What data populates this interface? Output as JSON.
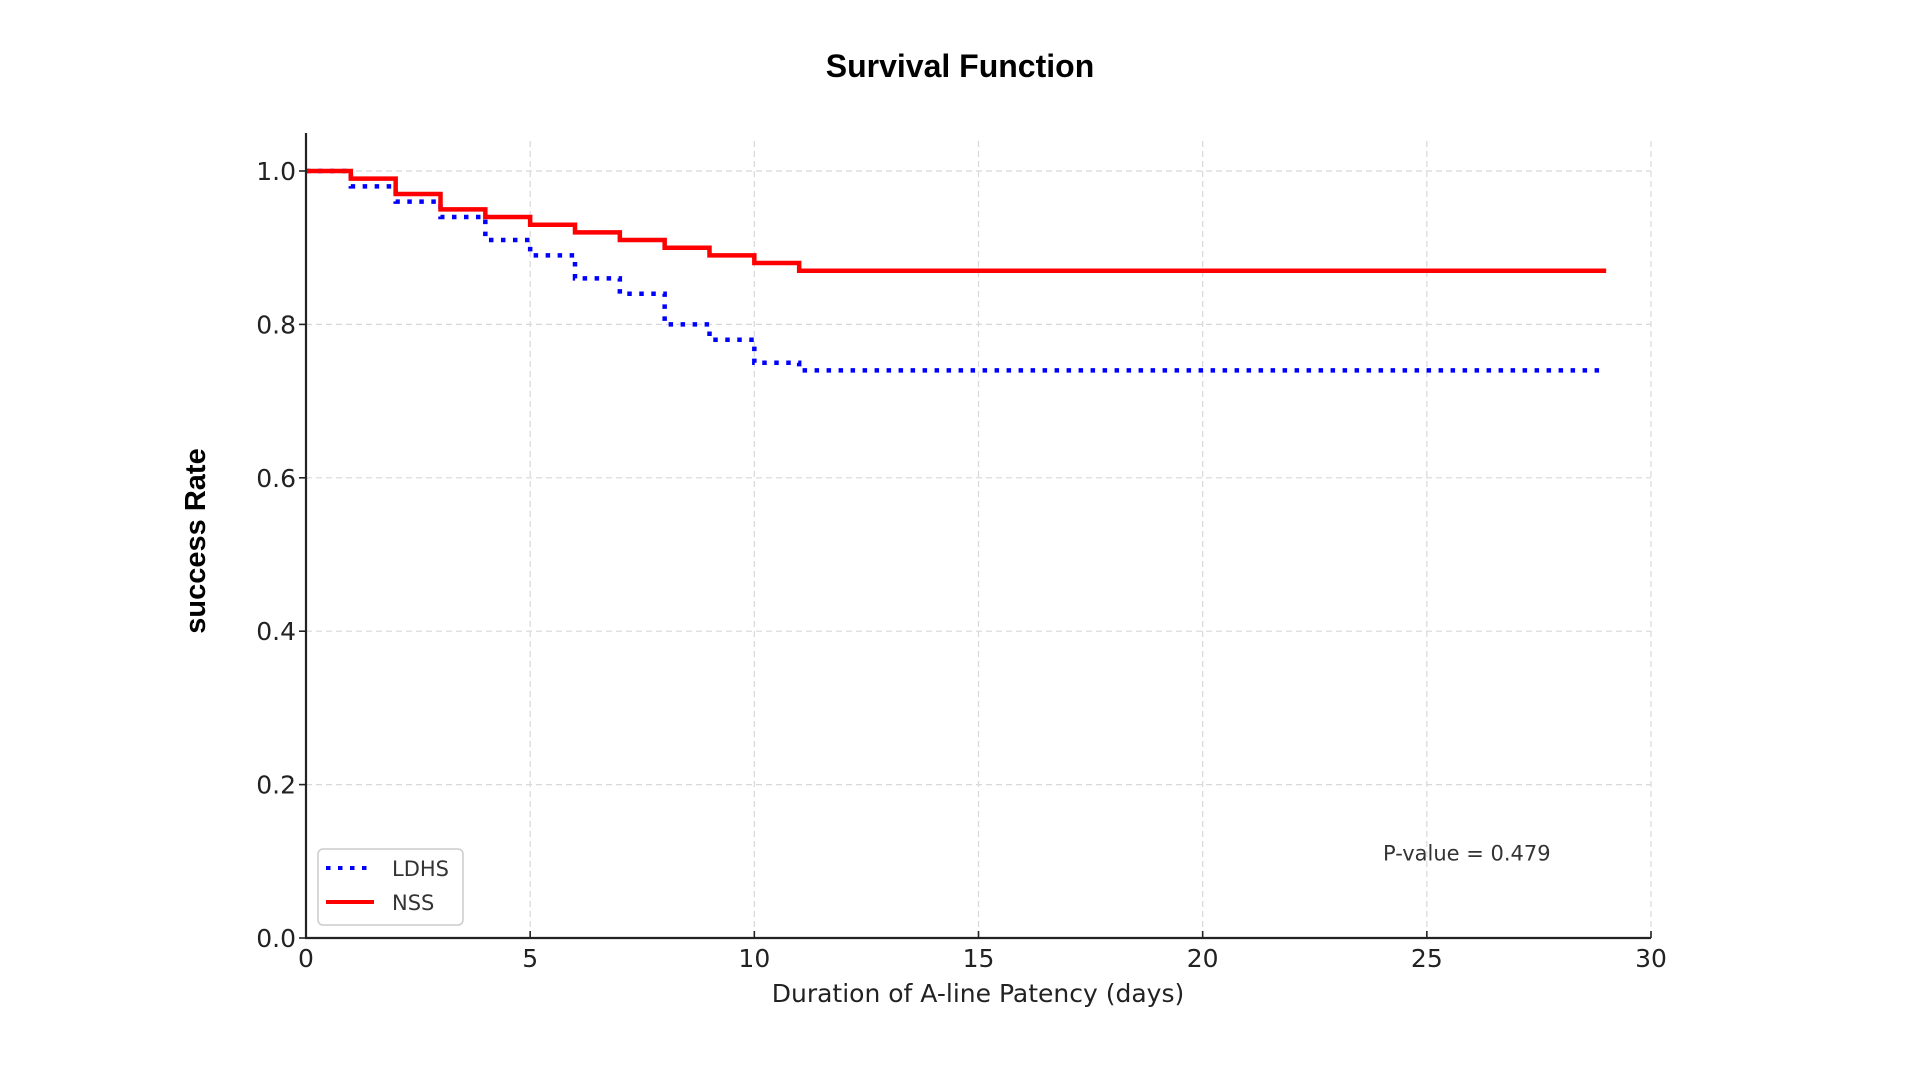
{
  "chart_data": {
    "type": "line",
    "title": "Survival Function",
    "xlabel": "Duration of A-line Patency (days)",
    "ylabel": "success Rate",
    "xlim": [
      0,
      30
    ],
    "ylim": [
      0,
      1.05
    ],
    "xticks": [
      0,
      5,
      10,
      15,
      20,
      25,
      30
    ],
    "xtick_labels": [
      "0",
      "5",
      "10",
      "15",
      "20",
      "25",
      "30"
    ],
    "yticks": [
      0.0,
      0.2,
      0.4,
      0.6,
      0.8,
      1.0
    ],
    "ytick_labels": [
      "0.0",
      "0.2",
      "0.4",
      "0.6",
      "0.8",
      "1.0"
    ],
    "grid": true,
    "step": "post",
    "legend_position": "lower-left",
    "series": [
      {
        "name": "LDHS",
        "color": "#0000ff",
        "style": "dotted",
        "x": [
          0,
          1,
          2,
          3,
          4,
          5,
          6,
          7,
          8,
          9,
          10,
          11,
          29
        ],
        "y": [
          1.0,
          0.98,
          0.96,
          0.94,
          0.91,
          0.89,
          0.86,
          0.84,
          0.8,
          0.78,
          0.75,
          0.74,
          0.74
        ]
      },
      {
        "name": "NSS",
        "color": "#ff0000",
        "style": "solid",
        "x": [
          0,
          1,
          2,
          3,
          4,
          5,
          6,
          7,
          8,
          9,
          10,
          11,
          29
        ],
        "y": [
          1.0,
          0.99,
          0.97,
          0.95,
          0.94,
          0.93,
          0.92,
          0.91,
          0.9,
          0.89,
          0.88,
          0.87,
          0.87
        ]
      }
    ],
    "annotations": [
      {
        "text": "P-value = 0.479",
        "x": 24,
        "y": 0.11
      }
    ]
  }
}
